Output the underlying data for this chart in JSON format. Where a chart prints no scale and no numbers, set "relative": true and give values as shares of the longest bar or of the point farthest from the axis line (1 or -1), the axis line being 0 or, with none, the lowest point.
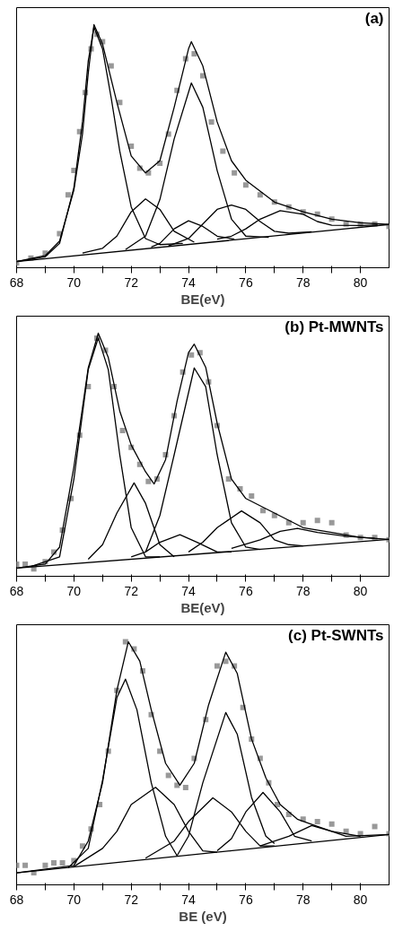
{
  "chart_data": [
    {
      "type": "line",
      "relative": true,
      "xlabel": "BE(eV)",
      "annotations": [
        "(a)"
      ],
      "xlim": [
        68,
        81
      ],
      "xticks": [
        68,
        {
          "value": 69,
          "label": null
        },
        70,
        {
          "value": 71,
          "label": null
        },
        72,
        {
          "value": 73,
          "label": null
        },
        74,
        {
          "value": 75,
          "label": null
        },
        76,
        {
          "value": 77,
          "label": null
        },
        78,
        {
          "value": 79,
          "label": null
        },
        80
      ],
      "tick_labels": "x",
      "grid": false,
      "line_style": "solid",
      "series": [
        {
          "type": "scatter",
          "marker": "square",
          "color": "#999999",
          "x": [
            68,
            68.5,
            69,
            69.5,
            69.8,
            70,
            70.2,
            70.4,
            70.6,
            70.8,
            71,
            71.3,
            71.6,
            72,
            72.3,
            72.6,
            73,
            73.3,
            73.6,
            73.9,
            74.2,
            74.5,
            74.8,
            75.2,
            75.6,
            76,
            76.5,
            77,
            77.5,
            78,
            78.5,
            79,
            79.5,
            80,
            80.5,
            81
          ],
          "values": [
            0.02,
            0.04,
            0.06,
            0.14,
            0.3,
            0.4,
            0.56,
            0.72,
            0.9,
            0.96,
            0.93,
            0.83,
            0.68,
            0.5,
            0.41,
            0.39,
            0.43,
            0.55,
            0.73,
            0.86,
            0.88,
            0.79,
            0.6,
            0.48,
            0.39,
            0.34,
            0.3,
            0.27,
            0.25,
            0.23,
            0.22,
            0.2,
            0.18,
            0.18,
            0.18,
            0.17
          ]
        },
        {
          "color": "#000000",
          "x": [
            68,
            69,
            69.5,
            70,
            70.3,
            70.5,
            70.7,
            71,
            71.5,
            72,
            72.5,
            73,
            73.5,
            74,
            74.1,
            74.5,
            75,
            75.5,
            76,
            77,
            78,
            79,
            80,
            81
          ],
          "values": [
            0.025,
            0.05,
            0.11,
            0.32,
            0.55,
            0.8,
            1.0,
            0.92,
            0.68,
            0.46,
            0.39,
            0.44,
            0.66,
            0.9,
            0.93,
            0.83,
            0.6,
            0.44,
            0.36,
            0.27,
            0.23,
            0.2,
            0.185,
            0.178
          ]
        },
        {
          "color": "#000000",
          "x": [
            68,
            81
          ],
          "values": [
            0.025,
            0.178
          ]
        },
        {
          "color": "#000000",
          "x": [
            68,
            69,
            69.5,
            70,
            70.3,
            70.5,
            70.7,
            71,
            71.3,
            71.6,
            72,
            72.5,
            73,
            73.8
          ],
          "values": [
            0.025,
            0.045,
            0.1,
            0.33,
            0.6,
            0.85,
            0.99,
            0.9,
            0.7,
            0.48,
            0.25,
            0.12,
            0.095,
            0.1
          ]
        },
        {
          "color": "#000000",
          "x": [
            70.3,
            71,
            71.5,
            72,
            72.5,
            73,
            73.5,
            74.2
          ],
          "values": [
            0.06,
            0.08,
            0.13,
            0.23,
            0.283,
            0.24,
            0.15,
            0.105
          ]
        },
        {
          "color": "#000000",
          "x": [
            71.8,
            72.5,
            73,
            73.5,
            74.1,
            74.5,
            75,
            75.5,
            76,
            76.8
          ],
          "values": [
            0.075,
            0.13,
            0.28,
            0.53,
            0.76,
            0.66,
            0.4,
            0.2,
            0.13,
            0.125
          ]
        },
        {
          "color": "#000000",
          "x": [
            72.7,
            73,
            73.5,
            74,
            74.5,
            75,
            75.6
          ],
          "values": [
            0.085,
            0.1,
            0.16,
            0.193,
            0.17,
            0.13,
            0.118
          ]
        },
        {
          "color": "#000000",
          "x": [
            73.3,
            74,
            74.5,
            75,
            75.5,
            76,
            76.5,
            77,
            77.5,
            78.3
          ],
          "values": [
            0.09,
            0.12,
            0.18,
            0.24,
            0.258,
            0.24,
            0.19,
            0.15,
            0.142,
            0.148
          ]
        },
        {
          "color": "#000000",
          "x": [
            75,
            75.5,
            76,
            76.5,
            77.2,
            78,
            78.5,
            79,
            80,
            80.6
          ],
          "values": [
            0.118,
            0.13,
            0.16,
            0.2,
            0.235,
            0.22,
            0.19,
            0.175,
            0.174,
            0.176
          ]
        }
      ]
    },
    {
      "type": "line",
      "relative": true,
      "xlabel": "BE(eV)",
      "annotations": [
        "(b) Pt-MWNTs"
      ],
      "xlim": [
        68,
        81
      ],
      "xticks": [
        68,
        {
          "value": 69,
          "label": null
        },
        70,
        {
          "value": 71,
          "label": null
        },
        72,
        {
          "value": 73,
          "label": null
        },
        74,
        {
          "value": 75,
          "label": null
        },
        76,
        {
          "value": 77,
          "label": null
        },
        78,
        {
          "value": 79,
          "label": null
        },
        80
      ],
      "tick_labels": "x",
      "grid": false,
      "line_style": "solid",
      "series": [
        {
          "type": "scatter",
          "marker": "square",
          "color": "#999999",
          "x": [
            68,
            68.3,
            68.6,
            69,
            69.3,
            69.6,
            69.9,
            70.2,
            70.5,
            70.8,
            71.1,
            71.4,
            71.7,
            72,
            72.3,
            72.6,
            72.9,
            73.2,
            73.5,
            73.8,
            74.1,
            74.4,
            74.7,
            75,
            75.4,
            75.8,
            76.2,
            76.6,
            77,
            77.5,
            78,
            78.5,
            79,
            79.5,
            80,
            80.5,
            81
          ],
          "values": [
            0.05,
            0.05,
            0.03,
            0.06,
            0.1,
            0.19,
            0.32,
            0.58,
            0.78,
            0.98,
            0.93,
            0.78,
            0.6,
            0.53,
            0.46,
            0.39,
            0.4,
            0.5,
            0.66,
            0.84,
            0.91,
            0.92,
            0.8,
            0.62,
            0.4,
            0.36,
            0.33,
            0.27,
            0.25,
            0.22,
            0.22,
            0.23,
            0.22,
            0.17,
            0.16,
            0.16,
            0.15
          ]
        },
        {
          "color": "#000000",
          "x": [
            68,
            69,
            69.5,
            70,
            70.5,
            70.85,
            71.2,
            71.6,
            72,
            72.5,
            72.8,
            73.2,
            73.6,
            74,
            74.2,
            74.6,
            75,
            75.5,
            76,
            77,
            78,
            79,
            80,
            81
          ],
          "values": [
            0.034,
            0.05,
            0.12,
            0.45,
            0.857,
            1.0,
            0.9,
            0.68,
            0.54,
            0.43,
            0.38,
            0.48,
            0.72,
            0.92,
            0.955,
            0.86,
            0.63,
            0.4,
            0.32,
            0.26,
            0.2,
            0.18,
            0.16,
            0.152
          ]
        },
        {
          "color": "#000000",
          "x": [
            68,
            81
          ],
          "values": [
            0.034,
            0.152
          ]
        },
        {
          "color": "#000000",
          "x": [
            68.5,
            69.5,
            70,
            70.5,
            70.85,
            71.2,
            71.6,
            72,
            72.5,
            73
          ],
          "values": [
            0.04,
            0.08,
            0.4,
            0.85,
            0.98,
            0.85,
            0.5,
            0.2,
            0.08,
            0.08
          ]
        },
        {
          "color": "#000000",
          "x": [
            70.5,
            71,
            71.5,
            72.1,
            72.5,
            73,
            73.5
          ],
          "values": [
            0.07,
            0.13,
            0.26,
            0.384,
            0.3,
            0.13,
            0.08
          ]
        },
        {
          "color": "#000000",
          "x": [
            72.5,
            73,
            73.5,
            74.2,
            74.6,
            75,
            75.5,
            76,
            76.5
          ],
          "values": [
            0.1,
            0.25,
            0.5,
            0.857,
            0.78,
            0.5,
            0.22,
            0.12,
            0.11
          ]
        },
        {
          "color": "#000000",
          "x": [
            72,
            72.5,
            73,
            73.7,
            74.3,
            75,
            75.5
          ],
          "values": [
            0.08,
            0.1,
            0.14,
            0.171,
            0.14,
            0.1,
            0.1
          ]
        },
        {
          "color": "#000000",
          "x": [
            74,
            74.5,
            75,
            75.85,
            76.5,
            77,
            77.5,
            78
          ],
          "values": [
            0.1,
            0.14,
            0.2,
            0.269,
            0.22,
            0.15,
            0.13,
            0.125
          ]
        },
        {
          "color": "#000000",
          "x": [
            75.5,
            76.5,
            77.2,
            77.8,
            78.5,
            79.5,
            80.5
          ],
          "values": [
            0.115,
            0.15,
            0.185,
            0.197,
            0.18,
            0.165,
            0.156
          ]
        }
      ]
    },
    {
      "type": "line",
      "relative": true,
      "xlabel": "BE (eV)",
      "annotations": [
        "(c) Pt-SWNTs"
      ],
      "xlim": [
        68,
        81
      ],
      "xticks": [
        68,
        {
          "value": 69,
          "label": null
        },
        70,
        {
          "value": 71,
          "label": null
        },
        72,
        {
          "value": 73,
          "label": null
        },
        74,
        {
          "value": 75,
          "label": null
        },
        76,
        {
          "value": 77,
          "label": null
        },
        78,
        {
          "value": 79,
          "label": null
        },
        80
      ],
      "tick_labels": "x",
      "grid": false,
      "line_style": "solid",
      "series": [
        {
          "type": "scatter",
          "marker": "square",
          "color": "#999999",
          "x": [
            68,
            68.3,
            68.6,
            69,
            69.3,
            69.6,
            70,
            70.3,
            70.6,
            70.9,
            71.2,
            71.5,
            71.8,
            72.1,
            72.4,
            72.7,
            73,
            73.3,
            73.6,
            73.9,
            74.2,
            74.6,
            75,
            75.3,
            75.6,
            75.9,
            76.2,
            76.5,
            76.8,
            77.1,
            77.5,
            78,
            78.5,
            79,
            79.5,
            80,
            80.5,
            81
          ],
          "values": [
            0.08,
            0.08,
            0.05,
            0.08,
            0.09,
            0.09,
            0.1,
            0.16,
            0.23,
            0.33,
            0.55,
            0.8,
            1.0,
            0.97,
            0.88,
            0.7,
            0.55,
            0.45,
            0.41,
            0.4,
            0.52,
            0.68,
            0.9,
            0.92,
            0.9,
            0.73,
            0.6,
            0.52,
            0.42,
            0.33,
            0.29,
            0.27,
            0.26,
            0.25,
            0.22,
            0.21,
            0.24,
            0.21
          ]
        },
        {
          "color": "#000000",
          "x": [
            68,
            70,
            70.5,
            71,
            71.5,
            71.9,
            72.3,
            72.7,
            73.2,
            73.7,
            74.2,
            74.7,
            75.3,
            75.7,
            76.2,
            76.7,
            77.2,
            77.8,
            78.5,
            79.5,
            81
          ],
          "values": [
            0.049,
            0.08,
            0.18,
            0.42,
            0.8,
            1.0,
            0.92,
            0.72,
            0.5,
            0.41,
            0.5,
            0.74,
            0.957,
            0.87,
            0.6,
            0.44,
            0.33,
            0.27,
            0.24,
            0.2,
            0.207
          ]
        },
        {
          "color": "#000000",
          "x": [
            68,
            81
          ],
          "values": [
            0.049,
            0.207
          ]
        },
        {
          "color": "#000000",
          "x": [
            69.8,
            70.5,
            71,
            71.5,
            71.8,
            72.2,
            72.7,
            73.2,
            73.6
          ],
          "values": [
            0.07,
            0.15,
            0.43,
            0.77,
            0.846,
            0.72,
            0.42,
            0.2,
            0.12
          ]
        },
        {
          "color": "#000000",
          "x": [
            70,
            71,
            71.5,
            72,
            72.85,
            73.5,
            74,
            74.5,
            75
          ],
          "values": [
            0.075,
            0.15,
            0.22,
            0.33,
            0.401,
            0.33,
            0.22,
            0.14,
            0.134
          ]
        },
        {
          "color": "#000000",
          "x": [
            73.6,
            74,
            74.5,
            75.3,
            75.7,
            76.2,
            76.7,
            77
          ],
          "values": [
            0.12,
            0.2,
            0.42,
            0.709,
            0.62,
            0.36,
            0.2,
            0.17
          ]
        },
        {
          "color": "#000000",
          "x": [
            72.5,
            73.5,
            74,
            74.85,
            75.5,
            76,
            76.5,
            77
          ],
          "values": [
            0.11,
            0.18,
            0.26,
            0.358,
            0.3,
            0.22,
            0.16,
            0.16
          ]
        },
        {
          "color": "#000000",
          "x": [
            75,
            75.5,
            76,
            76.6,
            77.2,
            77.7,
            78.3
          ],
          "values": [
            0.14,
            0.19,
            0.3,
            0.38,
            0.3,
            0.2,
            0.18
          ]
        },
        {
          "color": "#000000",
          "x": [
            76.5,
            77.5,
            78.3,
            79,
            80
          ],
          "values": [
            0.16,
            0.2,
            0.244,
            0.22,
            0.2
          ]
        }
      ]
    }
  ]
}
